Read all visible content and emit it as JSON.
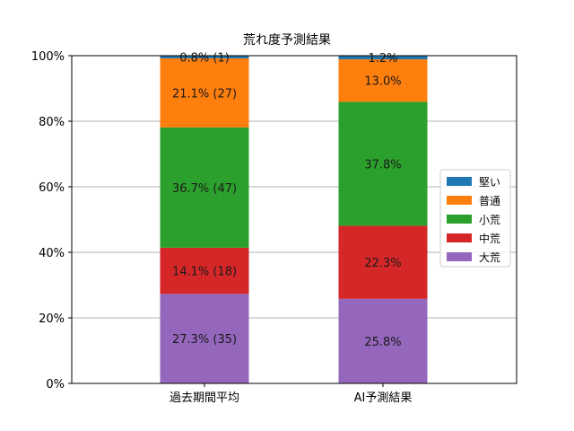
{
  "chart_data": {
    "type": "bar",
    "stacked": true,
    "title": "荒れ度予測結果",
    "xlabel": "",
    "ylabel": "",
    "ylim": [
      0,
      100
    ],
    "y_tick_format": "percent",
    "y_ticks": [
      "0%",
      "20%",
      "40%",
      "60%",
      "80%",
      "100%"
    ],
    "grid": "y",
    "legend_position": "right",
    "categories": [
      "過去期間平均",
      "AI予測結果"
    ],
    "series": [
      {
        "name": "大荒",
        "color": "#9467bd",
        "values": [
          27.3,
          25.8
        ],
        "labels": [
          "27.3% (35)",
          "25.8%"
        ]
      },
      {
        "name": "中荒",
        "color": "#d62728",
        "values": [
          14.1,
          22.3
        ],
        "labels": [
          "14.1% (18)",
          "22.3%"
        ]
      },
      {
        "name": "小荒",
        "color": "#2ca02c",
        "values": [
          36.7,
          37.8
        ],
        "labels": [
          "36.7% (47)",
          "37.8%"
        ]
      },
      {
        "name": "普通",
        "color": "#ff7f0e",
        "values": [
          21.1,
          13.0
        ],
        "labels": [
          "21.1% (27)",
          "13.0%"
        ]
      },
      {
        "name": "堅い",
        "color": "#1f77b4",
        "values": [
          0.8,
          1.2
        ],
        "labels": [
          "0.8% (1)",
          "1.2%"
        ]
      }
    ],
    "legend_order": [
      "堅い",
      "普通",
      "小荒",
      "中荒",
      "大荒"
    ]
  }
}
